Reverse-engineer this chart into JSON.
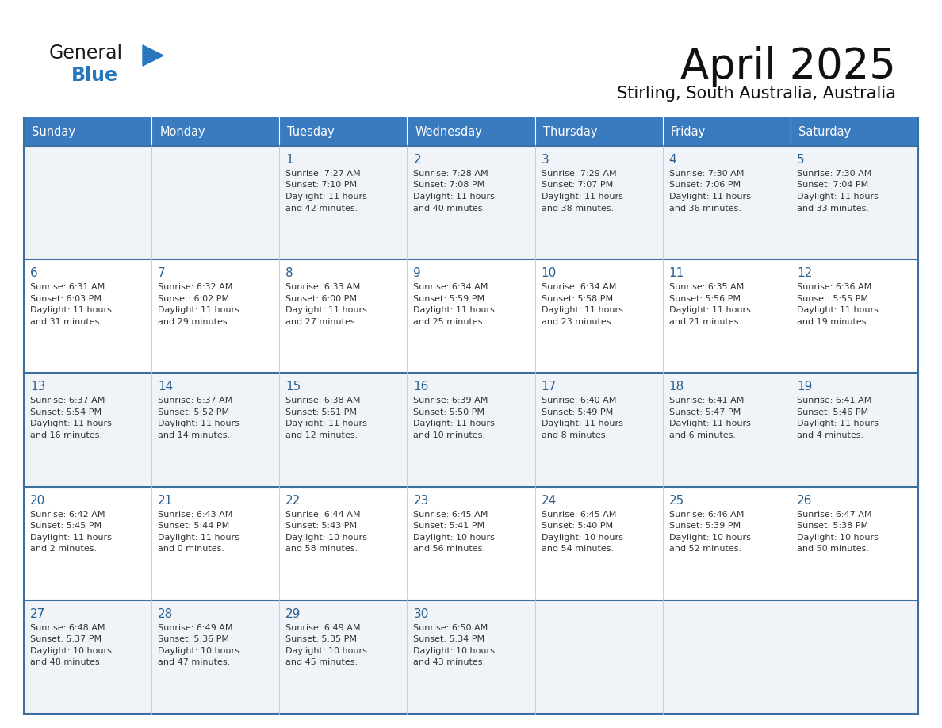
{
  "title": "April 2025",
  "subtitle": "Stirling, South Australia, Australia",
  "days_of_week": [
    "Sunday",
    "Monday",
    "Tuesday",
    "Wednesday",
    "Thursday",
    "Friday",
    "Saturday"
  ],
  "header_bg": "#3a7abf",
  "header_text": "#ffffff",
  "cell_bg_gray": "#f0f4f8",
  "cell_bg_white": "#ffffff",
  "day_num_color": "#2a5f8f",
  "text_color": "#333333",
  "line_color": "#3a6fa0",
  "weeks": [
    [
      {
        "day": null,
        "info": null
      },
      {
        "day": null,
        "info": null
      },
      {
        "day": "1",
        "info": "Sunrise: 7:27 AM\nSunset: 7:10 PM\nDaylight: 11 hours\nand 42 minutes."
      },
      {
        "day": "2",
        "info": "Sunrise: 7:28 AM\nSunset: 7:08 PM\nDaylight: 11 hours\nand 40 minutes."
      },
      {
        "day": "3",
        "info": "Sunrise: 7:29 AM\nSunset: 7:07 PM\nDaylight: 11 hours\nand 38 minutes."
      },
      {
        "day": "4",
        "info": "Sunrise: 7:30 AM\nSunset: 7:06 PM\nDaylight: 11 hours\nand 36 minutes."
      },
      {
        "day": "5",
        "info": "Sunrise: 7:30 AM\nSunset: 7:04 PM\nDaylight: 11 hours\nand 33 minutes."
      }
    ],
    [
      {
        "day": "6",
        "info": "Sunrise: 6:31 AM\nSunset: 6:03 PM\nDaylight: 11 hours\nand 31 minutes."
      },
      {
        "day": "7",
        "info": "Sunrise: 6:32 AM\nSunset: 6:02 PM\nDaylight: 11 hours\nand 29 minutes."
      },
      {
        "day": "8",
        "info": "Sunrise: 6:33 AM\nSunset: 6:00 PM\nDaylight: 11 hours\nand 27 minutes."
      },
      {
        "day": "9",
        "info": "Sunrise: 6:34 AM\nSunset: 5:59 PM\nDaylight: 11 hours\nand 25 minutes."
      },
      {
        "day": "10",
        "info": "Sunrise: 6:34 AM\nSunset: 5:58 PM\nDaylight: 11 hours\nand 23 minutes."
      },
      {
        "day": "11",
        "info": "Sunrise: 6:35 AM\nSunset: 5:56 PM\nDaylight: 11 hours\nand 21 minutes."
      },
      {
        "day": "12",
        "info": "Sunrise: 6:36 AM\nSunset: 5:55 PM\nDaylight: 11 hours\nand 19 minutes."
      }
    ],
    [
      {
        "day": "13",
        "info": "Sunrise: 6:37 AM\nSunset: 5:54 PM\nDaylight: 11 hours\nand 16 minutes."
      },
      {
        "day": "14",
        "info": "Sunrise: 6:37 AM\nSunset: 5:52 PM\nDaylight: 11 hours\nand 14 minutes."
      },
      {
        "day": "15",
        "info": "Sunrise: 6:38 AM\nSunset: 5:51 PM\nDaylight: 11 hours\nand 12 minutes."
      },
      {
        "day": "16",
        "info": "Sunrise: 6:39 AM\nSunset: 5:50 PM\nDaylight: 11 hours\nand 10 minutes."
      },
      {
        "day": "17",
        "info": "Sunrise: 6:40 AM\nSunset: 5:49 PM\nDaylight: 11 hours\nand 8 minutes."
      },
      {
        "day": "18",
        "info": "Sunrise: 6:41 AM\nSunset: 5:47 PM\nDaylight: 11 hours\nand 6 minutes."
      },
      {
        "day": "19",
        "info": "Sunrise: 6:41 AM\nSunset: 5:46 PM\nDaylight: 11 hours\nand 4 minutes."
      }
    ],
    [
      {
        "day": "20",
        "info": "Sunrise: 6:42 AM\nSunset: 5:45 PM\nDaylight: 11 hours\nand 2 minutes."
      },
      {
        "day": "21",
        "info": "Sunrise: 6:43 AM\nSunset: 5:44 PM\nDaylight: 11 hours\nand 0 minutes."
      },
      {
        "day": "22",
        "info": "Sunrise: 6:44 AM\nSunset: 5:43 PM\nDaylight: 10 hours\nand 58 minutes."
      },
      {
        "day": "23",
        "info": "Sunrise: 6:45 AM\nSunset: 5:41 PM\nDaylight: 10 hours\nand 56 minutes."
      },
      {
        "day": "24",
        "info": "Sunrise: 6:45 AM\nSunset: 5:40 PM\nDaylight: 10 hours\nand 54 minutes."
      },
      {
        "day": "25",
        "info": "Sunrise: 6:46 AM\nSunset: 5:39 PM\nDaylight: 10 hours\nand 52 minutes."
      },
      {
        "day": "26",
        "info": "Sunrise: 6:47 AM\nSunset: 5:38 PM\nDaylight: 10 hours\nand 50 minutes."
      }
    ],
    [
      {
        "day": "27",
        "info": "Sunrise: 6:48 AM\nSunset: 5:37 PM\nDaylight: 10 hours\nand 48 minutes."
      },
      {
        "day": "28",
        "info": "Sunrise: 6:49 AM\nSunset: 5:36 PM\nDaylight: 10 hours\nand 47 minutes."
      },
      {
        "day": "29",
        "info": "Sunrise: 6:49 AM\nSunset: 5:35 PM\nDaylight: 10 hours\nand 45 minutes."
      },
      {
        "day": "30",
        "info": "Sunrise: 6:50 AM\nSunset: 5:34 PM\nDaylight: 10 hours\nand 43 minutes."
      },
      {
        "day": null,
        "info": null
      },
      {
        "day": null,
        "info": null
      },
      {
        "day": null,
        "info": null
      }
    ]
  ],
  "logo_general_color": "#1a1a1a",
  "logo_blue_color": "#2877bd",
  "fig_width": 11.88,
  "fig_height": 9.18
}
